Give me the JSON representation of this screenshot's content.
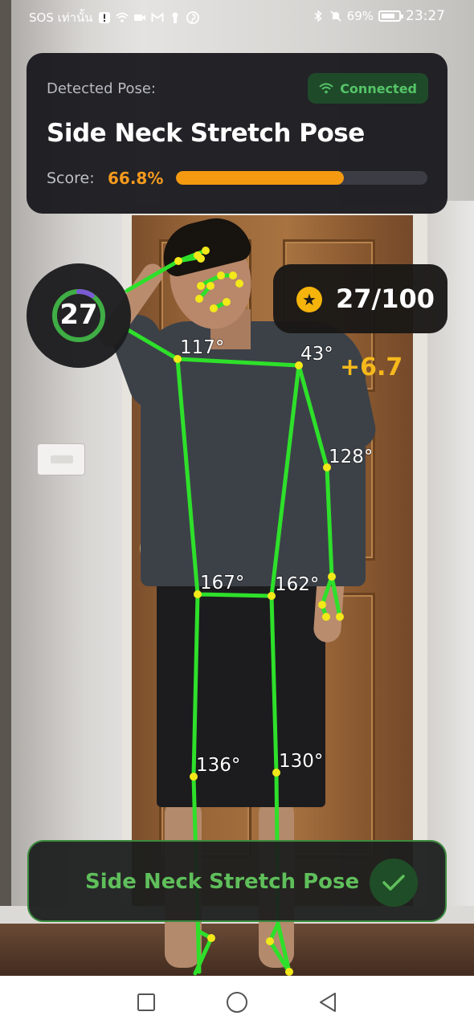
{
  "status_bar": {
    "left_text": "SOS เท่านั้น",
    "battery": "69%",
    "time": "23:27",
    "icons": [
      "alert-icon",
      "wifi-icon",
      "video-icon",
      "gmail-icon",
      "keyhole-icon",
      "pinterest-icon",
      "bluetooth-icon",
      "mute-bell-icon",
      "battery-icon"
    ]
  },
  "pose_card": {
    "label": "Detected Pose:",
    "connection": "Connected",
    "pose_name": "Side Neck Stretch Pose",
    "score_label": "Score:",
    "score_value": "66.8%",
    "score_fraction": 0.668
  },
  "counter": {
    "value": "27",
    "progress_fraction": 0.27
  },
  "points": {
    "text": "27/100",
    "gain": "+6.7",
    "icon": "star-icon"
  },
  "angles": {
    "left_shoulder": "117°",
    "right_shoulder": "43°",
    "right_elbow": "128°",
    "left_hip": "167°",
    "right_hip": "162°",
    "left_knee": "136°",
    "right_knee": "130°"
  },
  "banner": {
    "text": "Side Neck Stretch Pose",
    "icon": "check-icon"
  },
  "colors": {
    "skeleton": "#2ee02a",
    "keypoint": "#f2e81a",
    "score": "#f59a10",
    "connected_text": "#55c467",
    "banner_text": "#5fbf5b"
  },
  "nav": [
    "recents-button",
    "home-button",
    "back-button"
  ]
}
